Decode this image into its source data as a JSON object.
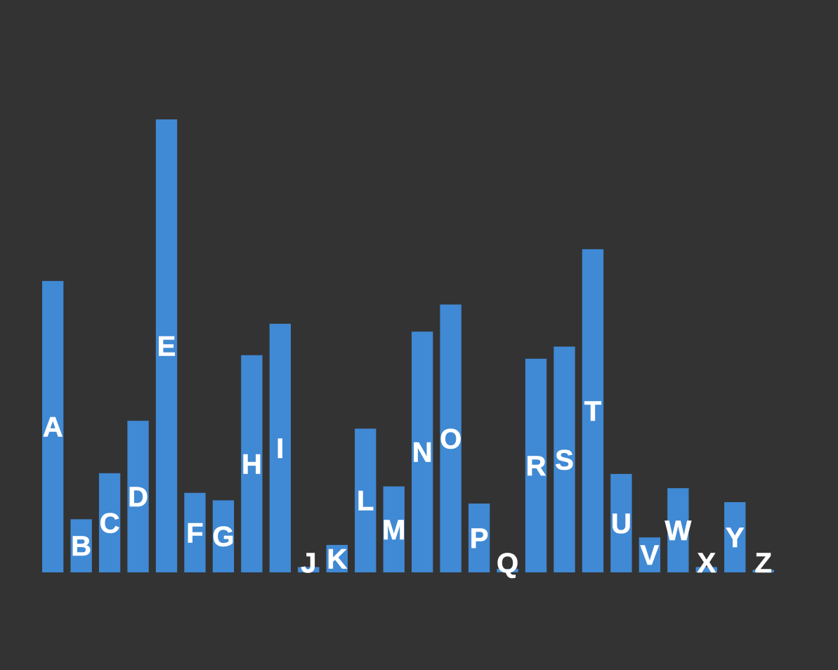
{
  "chart_data": {
    "type": "bar",
    "categories": [
      "A",
      "B",
      "C",
      "D",
      "E",
      "F",
      "G",
      "H",
      "I",
      "J",
      "K",
      "L",
      "M",
      "N",
      "O",
      "P",
      "Q",
      "R",
      "S",
      "T",
      "U",
      "V",
      "W",
      "X",
      "Y",
      "Z"
    ],
    "values": [
      8.17,
      1.49,
      2.78,
      4.25,
      12.7,
      2.23,
      2.02,
      6.09,
      6.97,
      0.15,
      0.77,
      4.03,
      2.41,
      6.75,
      7.51,
      1.93,
      0.1,
      5.99,
      6.33,
      9.06,
      2.76,
      0.98,
      2.36,
      0.15,
      1.97,
      0.07
    ],
    "title": "",
    "xlabel": "",
    "ylabel": "",
    "ylim": [
      0,
      12.7
    ],
    "grid": false,
    "legend": "none",
    "bar_color": "#4089d4",
    "label_color": "#ffffff",
    "background": "#333333"
  }
}
